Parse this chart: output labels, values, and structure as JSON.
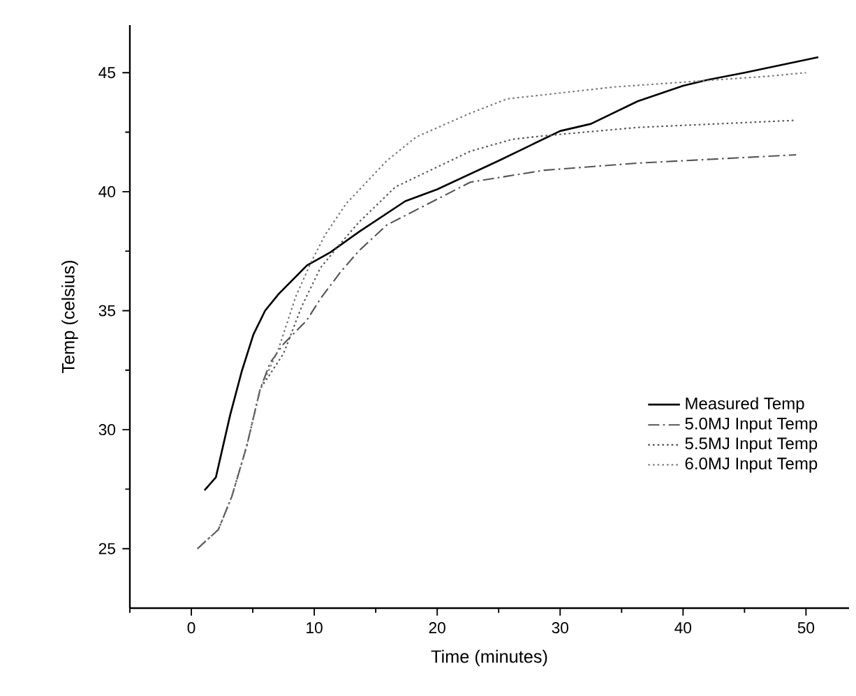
{
  "chart_data": {
    "type": "line",
    "xlabel": "Time (minutes)",
    "ylabel": "Temp (celsius)",
    "xlim": [
      -5,
      53.5
    ],
    "ylim": [
      22.5,
      47
    ],
    "xticks": [
      {
        "value": -5,
        "label": null
      },
      0,
      {
        "value": 5,
        "label": null
      },
      10,
      {
        "value": 15,
        "label": null
      },
      20,
      {
        "value": 25,
        "label": null
      },
      30,
      {
        "value": 35,
        "label": null
      },
      40,
      {
        "value": 45,
        "label": null
      },
      50
    ],
    "yticks": [
      25,
      {
        "value": 27.5,
        "label": null
      },
      30,
      {
        "value": 32.5,
        "label": null
      },
      35,
      {
        "value": 37.5,
        "label": null
      },
      40,
      {
        "value": 42.5,
        "label": null
      },
      45
    ],
    "grid": false,
    "legend": "right",
    "marker": "none",
    "series": [
      {
        "name": "Measured Temp",
        "color": "#000000",
        "line_style": "solid",
        "x": [
          1.07,
          2.0,
          3.15,
          4.1,
          5.05,
          6.0,
          7.1,
          9.4,
          11.3,
          13.6,
          17.4,
          20,
          25,
          30,
          32.5,
          36.3,
          40,
          42,
          45,
          51
        ],
        "values": [
          27.45,
          28.0,
          30.6,
          32.45,
          34.0,
          35.0,
          35.7,
          36.9,
          37.45,
          38.3,
          39.6,
          40.1,
          41.3,
          42.55,
          42.85,
          43.8,
          44.45,
          44.7,
          45.0,
          45.65
        ]
      },
      {
        "name": "5.0MJ Input Temp",
        "color": "#555555",
        "line_style": "dashed",
        "x": [
          0.5,
          2.2,
          3.3,
          4.5,
          5.6,
          6.4,
          7.5,
          9.4,
          10.5,
          12.1,
          13.6,
          15.9,
          22.7,
          28.7,
          36.3,
          49.2
        ],
        "values": [
          25,
          25.8,
          27.2,
          29.3,
          31.7,
          32.8,
          33.6,
          34.6,
          35.5,
          36.6,
          37.5,
          38.6,
          40.4,
          40.9,
          41.2,
          41.55
        ]
      },
      {
        "name": "5.5MJ Input Temp",
        "color": "#555555",
        "line_style": "dotted",
        "x": [
          0.5,
          2.2,
          3.3,
          4.5,
          5.6,
          7.5,
          9.0,
          10.5,
          12.1,
          13.6,
          16.6,
          22.7,
          26.1,
          28.7,
          36.3,
          49.2
        ],
        "values": [
          25,
          25.8,
          27.2,
          29.3,
          31.7,
          33.2,
          35.2,
          36.8,
          37.8,
          38.7,
          40.2,
          41.7,
          42.2,
          42.35,
          42.7,
          43.0
        ]
      },
      {
        "name": "6.0MJ Input Temp",
        "color": "#777777",
        "line_style": "dotted",
        "x": [
          0.5,
          2.2,
          3.3,
          4.5,
          5.6,
          7.1,
          8.5,
          9.8,
          10.9,
          12.6,
          15.9,
          18.3,
          22.7,
          25.7,
          34.4,
          46.9,
          50
        ],
        "values": [
          25,
          25.8,
          27.2,
          29.3,
          31.7,
          33.4,
          35.6,
          37.1,
          38.2,
          39.5,
          41.3,
          42.3,
          43.3,
          43.9,
          44.4,
          44.85,
          45.0
        ]
      }
    ]
  }
}
